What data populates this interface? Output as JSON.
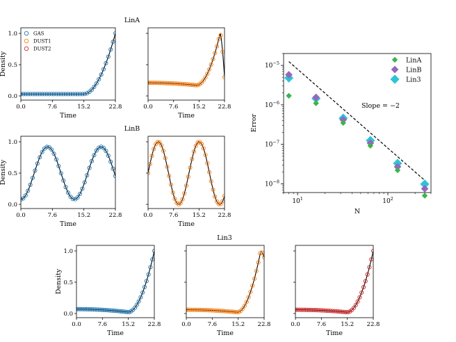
{
  "colors": {
    "gas": "#1f77b4",
    "dust1": "#ff7f0e",
    "dust2": "#d62728",
    "linA": "#3cb44b",
    "linB": "#9467bd",
    "lin3": "#2ec4d6",
    "curve": "#000000"
  },
  "chart_data": [
    {
      "id": "linA-gas",
      "type": "line",
      "group_title": "LinA",
      "xlabel": "Time",
      "ylabel": "Density",
      "xlim": [
        0,
        22.8
      ],
      "ylim": [
        0,
        1
      ],
      "xticks": [
        "0.0",
        "7.6",
        "15.2",
        "22.8"
      ],
      "yticks": [
        "0.0",
        "0.5",
        "1.0"
      ],
      "legend": [
        "GAS",
        "DUST1",
        "DUST2"
      ],
      "series": [
        {
          "name": "GAS",
          "shape": "growth",
          "tc": 15.2,
          "tp": 22.8,
          "base": 0.03,
          "dip": 0.0
        }
      ]
    },
    {
      "id": "linA-dust1",
      "type": "line",
      "xlabel": "Time",
      "xlim": [
        0,
        22.8
      ],
      "ylim": [
        0,
        1
      ],
      "xticks": [
        "0.0",
        "7.6",
        "15.2",
        "22.8"
      ],
      "series": [
        {
          "name": "DUST1",
          "shape": "growth_decay",
          "tc": 14.5,
          "tp": 21.5,
          "base": 0.21,
          "dip": 0.05,
          "end": 0.3
        }
      ]
    },
    {
      "id": "linB-gas",
      "type": "line",
      "group_title": "LinB",
      "xlabel": "Time",
      "ylabel": "Density",
      "xlim": [
        0,
        22.8
      ],
      "ylim": [
        0,
        1
      ],
      "xticks": [
        "0.0",
        "7.6",
        "15.2",
        "22.8"
      ],
      "yticks": [
        "0.0",
        "0.5",
        "1.0"
      ],
      "series": [
        {
          "name": "GAS",
          "shape": "osc",
          "amp": 0.42,
          "mid": 0.5,
          "period": 12.9,
          "phase": 0
        }
      ]
    },
    {
      "id": "linB-dust1",
      "type": "line",
      "xlabel": "Time",
      "xlim": [
        0,
        22.8
      ],
      "ylim": [
        0,
        1
      ],
      "xticks": [
        "0.0",
        "7.6",
        "15.2",
        "22.8"
      ],
      "series": [
        {
          "name": "DUST1",
          "shape": "osc",
          "amp": 0.5,
          "mid": 0.5,
          "period": 12.2,
          "phase": 1.571
        }
      ]
    },
    {
      "id": "lin3-gas",
      "type": "line",
      "group_title": "Lin3",
      "xlabel": "Time",
      "ylabel": "Density",
      "xlim": [
        0,
        22.8
      ],
      "ylim": [
        0,
        1
      ],
      "xticks": [
        "0.0",
        "7.6",
        "15.2",
        "22.8"
      ],
      "yticks": [
        "0.0",
        "0.5",
        "1.0"
      ],
      "series": [
        {
          "name": "GAS",
          "shape": "growth",
          "tc": 15.2,
          "tp": 22.8,
          "base": 0.07,
          "dip": 0.06
        }
      ]
    },
    {
      "id": "lin3-dust1",
      "type": "line",
      "xlabel": "Time",
      "xlim": [
        0,
        22.8
      ],
      "ylim": [
        0,
        1
      ],
      "xticks": [
        "0.0",
        "7.6",
        "15.2",
        "22.8"
      ],
      "series": [
        {
          "name": "DUST1",
          "shape": "growth_decay",
          "tc": 15.0,
          "tp": 21.8,
          "base": 0.06,
          "dip": 0.05,
          "end": 0.9
        }
      ]
    },
    {
      "id": "lin3-dust2",
      "type": "line",
      "xlabel": "Time",
      "xlim": [
        0,
        22.8
      ],
      "ylim": [
        0,
        1
      ],
      "xticks": [
        "0.0",
        "7.6",
        "15.2",
        "22.8"
      ],
      "series": [
        {
          "name": "DUST2",
          "shape": "growth",
          "tc": 15.2,
          "tp": 22.8,
          "base": 0.06,
          "dip": 0.05
        }
      ]
    },
    {
      "id": "error",
      "type": "scatter",
      "xlabel": "N",
      "ylabel": "Error",
      "xscale": "log",
      "yscale": "log",
      "xlim": [
        7,
        300
      ],
      "ylim": [
        6e-09,
        2e-05
      ],
      "xticks": [
        "10^1",
        "10^2"
      ],
      "yticks": [
        "10^-5",
        "10^-6",
        "10^-7",
        "10^-8"
      ],
      "annotation": "Slope = −2",
      "reference_line": {
        "slope": -2,
        "x": [
          8,
          256
        ],
        "y": [
          1.25e-05,
          1.22e-08
        ]
      },
      "legend_position": "top-right",
      "series": [
        {
          "name": "LinA",
          "x": [
            8,
            16,
            32,
            64,
            128,
            256
          ],
          "y": [
            1.7e-06,
            1.1e-06,
            3.5e-07,
            9.2e-08,
            2.2e-08,
            5e-09
          ]
        },
        {
          "name": "LinB",
          "x": [
            8,
            16,
            32,
            64,
            128,
            256
          ],
          "y": [
            5.8e-06,
            1.55e-06,
            4.2e-07,
            1.08e-07,
            2.7e-08,
            7.5e-09
          ]
        },
        {
          "name": "Lin3",
          "x": [
            8,
            16,
            32,
            64,
            128,
            256
          ],
          "y": [
            4.8e-06,
            1.45e-06,
            4.6e-07,
            1.25e-07,
            3.3e-08,
            9.8e-09
          ]
        }
      ]
    }
  ]
}
